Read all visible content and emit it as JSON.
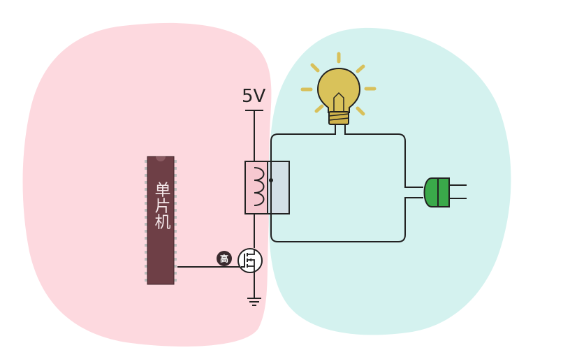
{
  "power": {
    "label": "5V"
  },
  "mcu": {
    "label": "单片机"
  },
  "transistor": {
    "state_label": "高"
  },
  "colors": {
    "control_region": "#fdd9df",
    "load_region": "#d4f2ef",
    "mcu_body": "#6e3f46",
    "bulb": "#d9c25a",
    "bulb_rays": "#d8c05a",
    "plug": "#3aa94a",
    "relay_left": "#f6c8d0",
    "relay_right": "#d3dfe6",
    "badge": "#3a2a2e"
  },
  "icons": {
    "power_source": "5v-terminal-icon",
    "relay": "relay-coil-icon",
    "transistor": "mosfet-icon",
    "ground": "ground-icon",
    "bulb": "light-bulb-icon",
    "plug": "power-plug-icon"
  }
}
